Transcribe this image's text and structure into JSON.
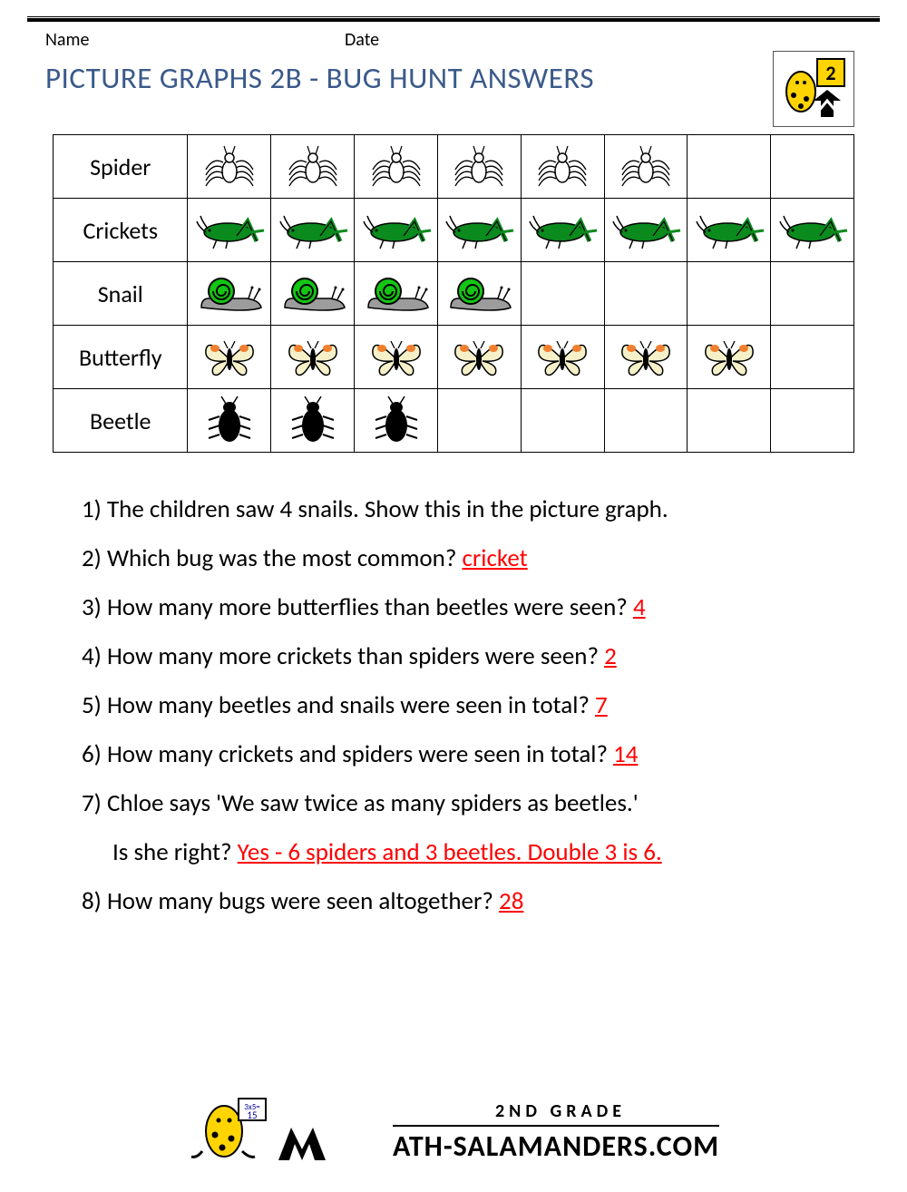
{
  "header": {
    "name_label": "Name",
    "date_label": "Date",
    "logo_badge_number": "2"
  },
  "title": {
    "text": "PICTURE GRAPHS 2B - BUG HUNT ANSWERS",
    "color": "#3b5a8a",
    "fontsize": 33
  },
  "pictograph": {
    "columns": 8,
    "row_label_fontsize": 26,
    "border_color": "#000000",
    "rows": [
      {
        "label": "Spider",
        "icon": "spider",
        "count": 6,
        "colors": {
          "body": "#000000",
          "fill": "#ffffff"
        }
      },
      {
        "label": "Crickets",
        "icon": "cricket",
        "count": 8,
        "colors": {
          "body": "#0b8a1e",
          "outline": "#000000"
        }
      },
      {
        "label": "Snail",
        "icon": "snail",
        "count": 4,
        "colors": {
          "shell": "#14c514",
          "foot": "#9c9c9c",
          "outline": "#000000"
        }
      },
      {
        "label": "Butterfly",
        "icon": "butterfly",
        "count": 7,
        "colors": {
          "wing": "#f5f0c8",
          "spot": "#f08030",
          "body": "#000000"
        }
      },
      {
        "label": "Beetle",
        "icon": "beetle",
        "count": 3,
        "colors": {
          "body": "#000000"
        }
      }
    ]
  },
  "questions": {
    "fontsize": 27,
    "answer_color": "#ff0000",
    "items": [
      {
        "n": "1)",
        "text": "The children saw 4 snails. Show this in the picture graph.",
        "answer": ""
      },
      {
        "n": "2)",
        "text": "Which bug was the most common?",
        "answer": "cricket"
      },
      {
        "n": "3)",
        "text": "How many more butterflies than beetles were seen?",
        "answer": "4"
      },
      {
        "n": "4)",
        "text": "How many more crickets than spiders were seen?",
        "answer": "2"
      },
      {
        "n": "5)",
        "text": "How many beetles and snails were seen in total?",
        "answer": "7"
      },
      {
        "n": "6)",
        "text": "How many crickets and spiders were seen in total?",
        "answer": "14"
      },
      {
        "n": "7)",
        "text": "Chloe says 'We saw twice as many spiders as beetles.'",
        "answer": "",
        "line2_text": "Is she right?",
        "line2_answer": "Yes - 6 spiders and 3 beetles. Double 3 is 6."
      },
      {
        "n": "8)",
        "text": "How many bugs were seen altogether?",
        "answer": "28"
      }
    ]
  },
  "footer": {
    "grade_text": "2ND GRADE",
    "site_text": "ATH-SALAMANDERS.COM",
    "big_M": "M"
  }
}
